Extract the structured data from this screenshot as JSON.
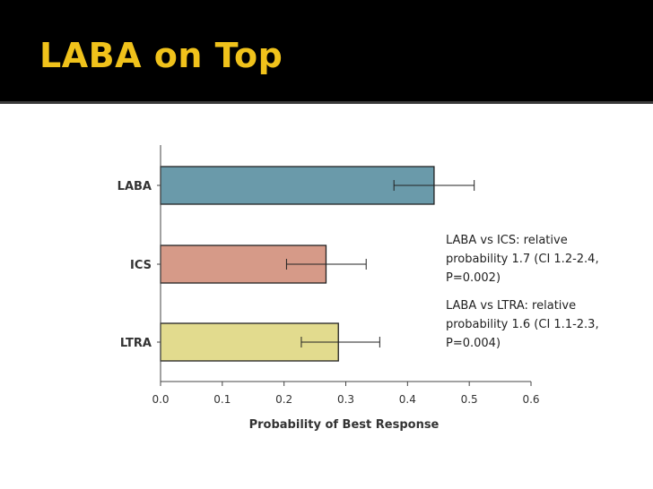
{
  "slide": {
    "title": "LABA on Top",
    "title_color": "#f0c21b",
    "band_color": "#000000"
  },
  "chart_data": {
    "type": "bar",
    "orientation": "horizontal",
    "categories": [
      "LABA",
      "ICS",
      "LTRA"
    ],
    "values": [
      0.443,
      0.268,
      0.288
    ],
    "ci_low": [
      0.378,
      0.204,
      0.228
    ],
    "ci_high": [
      0.508,
      0.333,
      0.355
    ],
    "colors": [
      "#6a9aaa",
      "#d69a88",
      "#e2db8e"
    ],
    "xlabel": "Probability of Best Response",
    "ylabel": "",
    "xlim": [
      0.0,
      0.6
    ],
    "xticks": [
      "0.0",
      "0.1",
      "0.2",
      "0.3",
      "0.4",
      "0.5",
      "0.6"
    ],
    "grid": false
  },
  "annotations": [
    "LABA vs ICS: relative probability 1.7 (CI 1.2-2.4, P=0.002)",
    "LABA vs LTRA: relative probability 1.6 (CI 1.1-2.3, P=0.004)"
  ]
}
